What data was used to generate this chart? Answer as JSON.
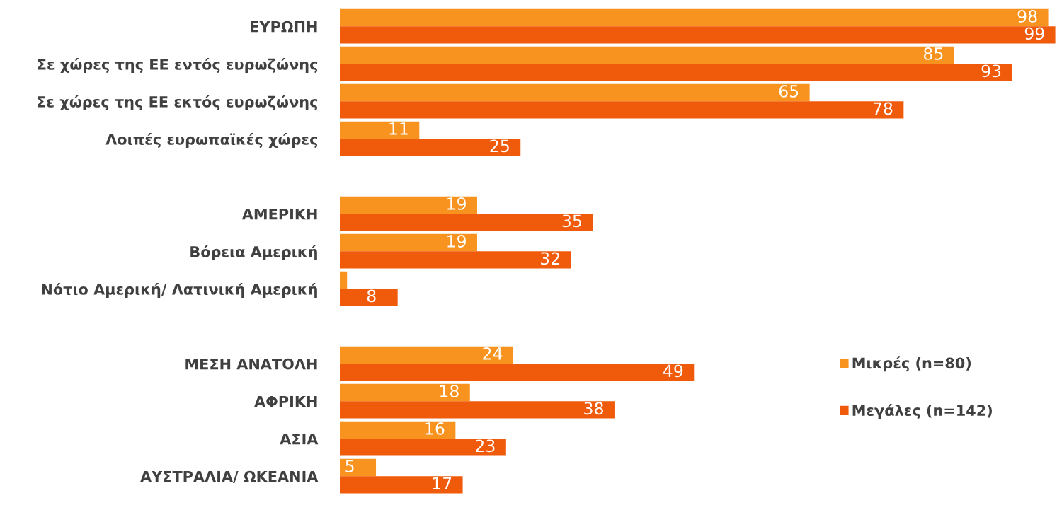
{
  "chart_data": {
    "type": "bar",
    "orientation": "horizontal",
    "categories": [
      "ΕΥΡΩΠΗ",
      "Σε χώρες της ΕΕ εντός ευρωζώνης",
      "Σε χώρες της ΕΕ εκτός ευρωζώνης",
      "Λοιπές ευρωπαϊκές χώρες",
      null,
      "ΑΜΕΡΙΚΗ",
      "Βόρεια Αμερική",
      "Νότιο Αμερική/ Λατινική Αμερική",
      null,
      "ΜΕΣΗ ΑΝΑΤΟΛΗ",
      "ΑΦΡΙΚΗ",
      "ΑΣΙΑ",
      "ΑΥΣΤΡΑΛΙΑ/ ΩΚΕΑΝΙΑ"
    ],
    "series": [
      {
        "name": "Μικρές (n=80)",
        "color": "#f7931e",
        "values": [
          98,
          85,
          65,
          11,
          null,
          19,
          19,
          1,
          null,
          24,
          18,
          16,
          5
        ],
        "value_labels": [
          "98",
          "85",
          "65",
          "11",
          null,
          "19",
          "19",
          null,
          null,
          "24",
          "18",
          "16",
          "5"
        ]
      },
      {
        "name": "Μεγάλες (n=142)",
        "color": "#f05a0b",
        "values": [
          99,
          93,
          78,
          25,
          null,
          35,
          32,
          8,
          null,
          49,
          38,
          23,
          17
        ],
        "value_labels": [
          "99",
          "93",
          "78",
          "25",
          null,
          "35",
          "32",
          "8",
          null,
          "49",
          "38",
          "23",
          "17"
        ]
      }
    ],
    "relative": false,
    "grid": false,
    "legend": "right"
  }
}
